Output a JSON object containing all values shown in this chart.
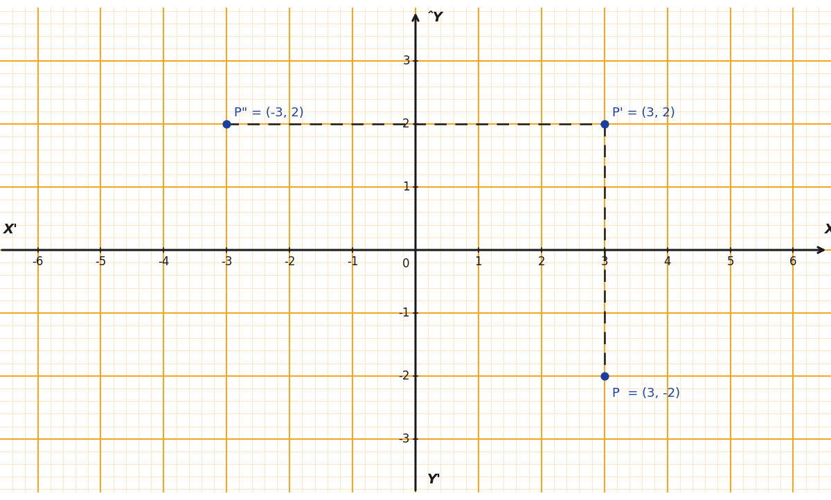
{
  "background_color": "#ffffff",
  "grid_minor_color": "#fde0c0",
  "grid_major_color": "#f5a623",
  "axis_color": "#1a1a1a",
  "points": {
    "P": [
      3,
      -2
    ],
    "P_prime": [
      3,
      2
    ],
    "P_double_prime": [
      -3,
      2
    ]
  },
  "point_color": "#1a3fa0",
  "point_size": 60,
  "dashed_line_color": "#1a1a1a",
  "xlim": [
    -6.6,
    6.6
  ],
  "ylim": [
    -3.85,
    3.85
  ],
  "xticks": [
    -6,
    -5,
    -4,
    -3,
    -2,
    -1,
    1,
    2,
    3,
    4,
    5,
    6
  ],
  "yticks": [
    -3,
    -2,
    -1,
    1,
    2,
    3
  ],
  "label_fontsize": 14,
  "tick_fontsize": 12,
  "point_label_fontsize": 13,
  "minor_grid_step": 0.2,
  "major_grid_step": 1.0,
  "axis_lw": 2.2
}
